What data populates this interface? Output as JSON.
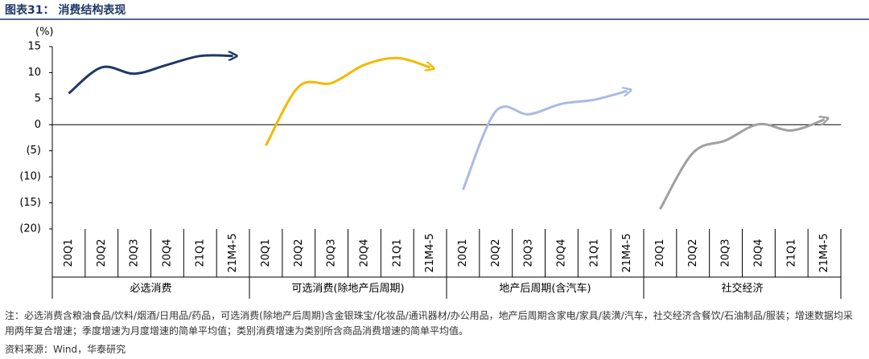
{
  "chart_data": {
    "type": "line",
    "title": "图表31：  消费结构表现",
    "ylabel": "(%)",
    "categories": [
      "20Q1",
      "20Q2",
      "20Q3",
      "20Q4",
      "21Q1",
      "21M4-5",
      "20Q1",
      "20Q2",
      "20Q3",
      "20Q4",
      "21Q1",
      "21M4-5",
      "20Q1",
      "20Q2",
      "20Q3",
      "20Q4",
      "21Q1",
      "21M4-5",
      "20Q1",
      "20Q2",
      "20Q3",
      "20Q4",
      "21Q1",
      "21M4-5"
    ],
    "groups": [
      "必选消费",
      "可选消费(除地产后周期)",
      "地产后周期(含汽车)",
      "社交经济"
    ],
    "series": [
      {
        "color": "#1f3864",
        "values": [
          6,
          11,
          9.8,
          11.5,
          13.2,
          13.2,
          null,
          null,
          null,
          null,
          null,
          null,
          null,
          null,
          null,
          null,
          null,
          null,
          null,
          null,
          null,
          null,
          null,
          null
        ]
      },
      {
        "color": "#f5b800",
        "values": [
          null,
          null,
          null,
          null,
          null,
          null,
          -4,
          7.3,
          8,
          11.5,
          12.8,
          11,
          null,
          null,
          null,
          null,
          null,
          null,
          null,
          null,
          null,
          null,
          null,
          null
        ]
      },
      {
        "color": "#a9bbe3",
        "values": [
          null,
          null,
          null,
          null,
          null,
          null,
          null,
          null,
          null,
          null,
          null,
          null,
          -12.5,
          2.6,
          2,
          4,
          4.8,
          6.5,
          null,
          null,
          null,
          null,
          null,
          null
        ]
      },
      {
        "color": "#a0a0a0",
        "values": [
          null,
          null,
          null,
          null,
          null,
          null,
          null,
          null,
          null,
          null,
          null,
          null,
          null,
          null,
          null,
          null,
          null,
          null,
          -16.2,
          -5.4,
          -3,
          0.1,
          -1.1,
          1
        ]
      }
    ],
    "ylim": [
      -20,
      15
    ],
    "yticks": [
      {
        "value": -20,
        "label": "(20)"
      },
      {
        "value": -15,
        "label": "(15)"
      },
      {
        "value": -10,
        "label": "(10)"
      },
      {
        "value": -5,
        "label": "(5)"
      },
      0,
      5,
      10,
      15
    ],
    "note": "注：必选消费含粮油食品/饮料/烟酒/日用品/药品，可选消费(除地产后周期)含金银珠宝/化妆品/通讯器材/办公用品，地产后周期含家电/家具/装潢/汽车，社交经济含餐饮/石油制品/服装；增速数据均采用两年复合增速；季度增速为月度增速的简单平均值；类别消费增速为类别所含商品消费增速的简单平均值。",
    "source": "资料来源：Wind，华泰研究"
  }
}
